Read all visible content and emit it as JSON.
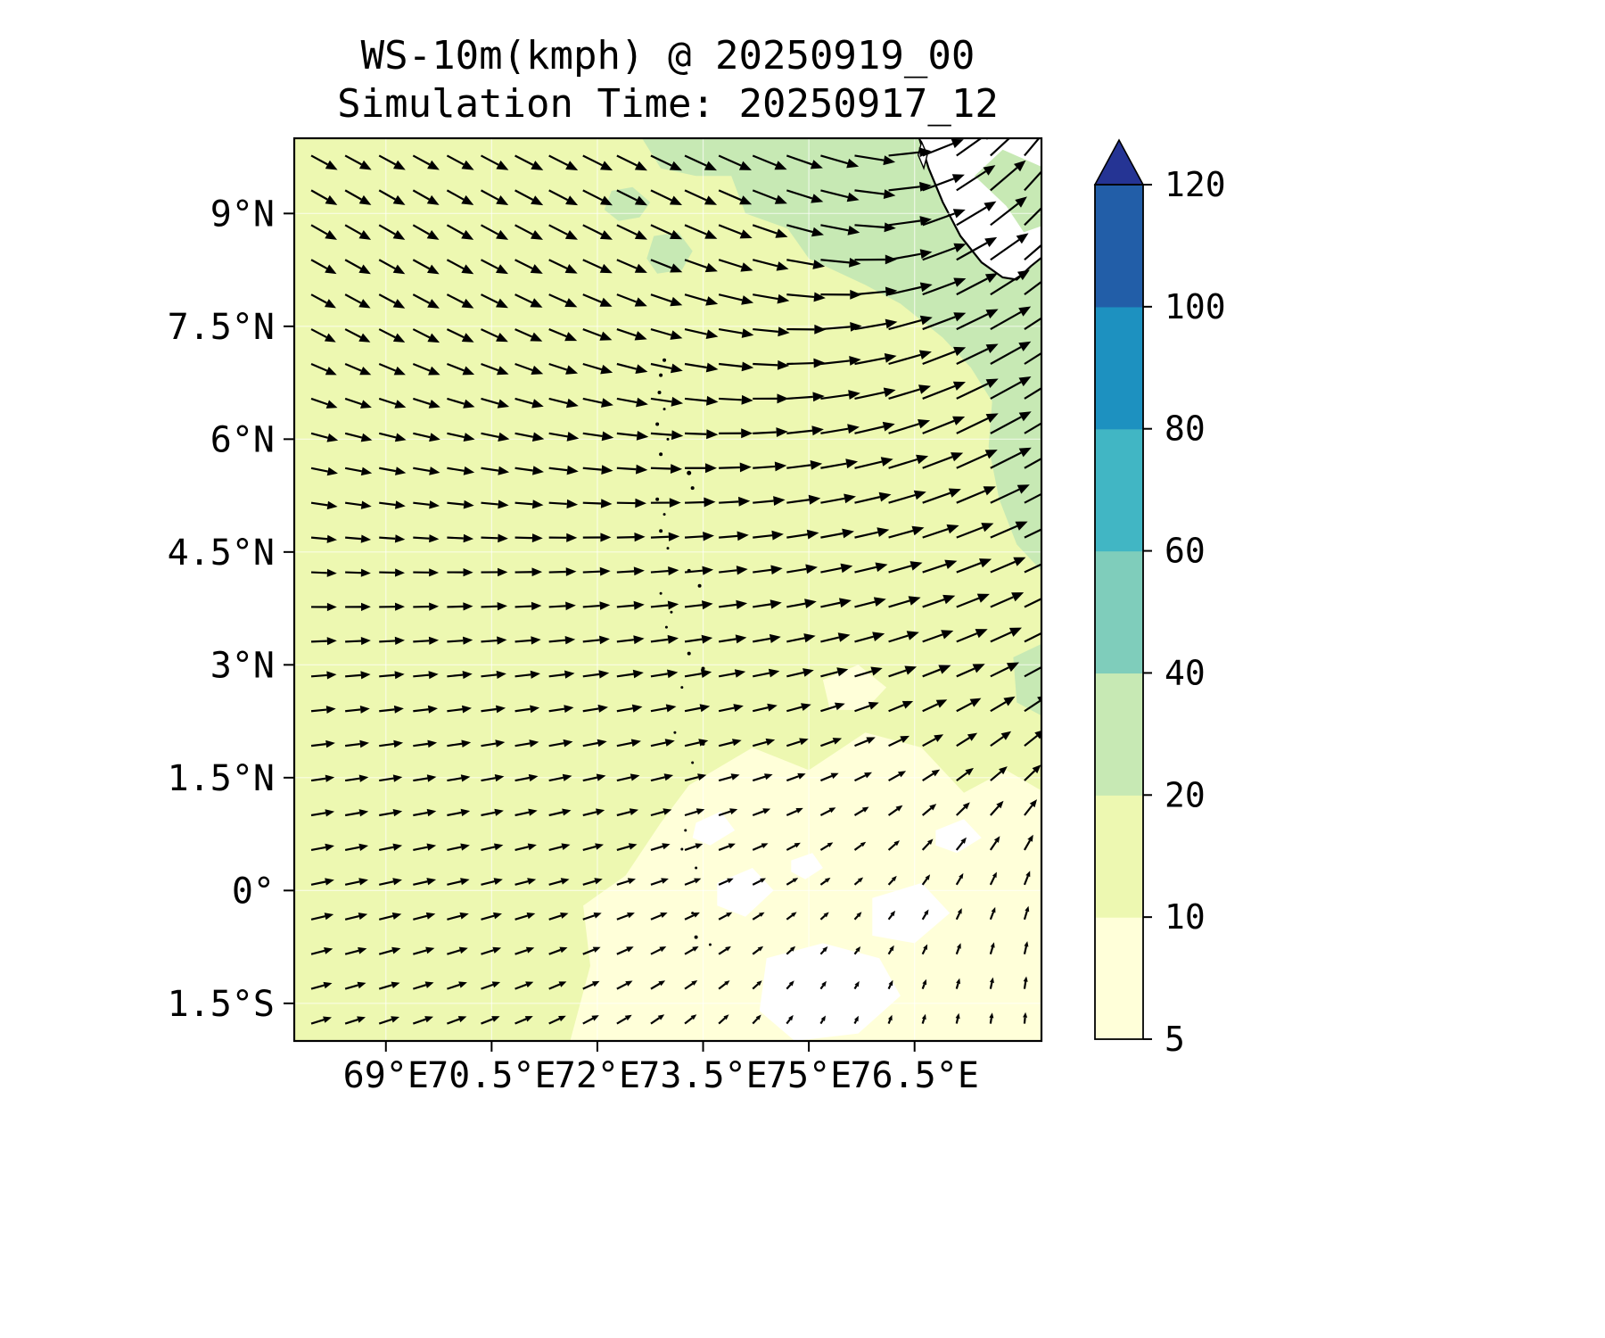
{
  "figure": {
    "title": "WS-10m(kmph) @ 20250919_00",
    "subtitle": "Simulation Time: 20250917_12"
  },
  "chart_data": {
    "type": "quiver_map",
    "title": "WS-10m(kmph) @ 20250919_00",
    "subtitle": "Simulation Time: 20250917_12",
    "variable": "10 m wind speed (kmph) with wind direction arrows",
    "x_tick_labels": [
      "69°E",
      "70.5°E",
      "72°E",
      "73.5°E",
      "75°E",
      "76.5°E"
    ],
    "x_tick_values": [
      69,
      70.5,
      72,
      73.5,
      75,
      76.5
    ],
    "y_tick_labels": [
      "9°N",
      "7.5°N",
      "6°N",
      "4.5°N",
      "3°N",
      "1.5°N",
      "0°",
      "1.5°S"
    ],
    "y_tick_values": [
      9,
      7.5,
      6,
      4.5,
      3,
      1.5,
      0,
      -1.5
    ],
    "lon_range": [
      67.7,
      78.3
    ],
    "lat_range": [
      -2.0,
      10.0
    ],
    "grid_on": true,
    "colorbar": {
      "levels": [
        5,
        10,
        20,
        40,
        60,
        80,
        100,
        120
      ],
      "tick_labels": [
        "5",
        "10",
        "20",
        "40",
        "60",
        "80",
        "100",
        "120"
      ],
      "colors": [
        "#ffffd9",
        "#edf8b1",
        "#c7e9b4",
        "#7fcdbb",
        "#41b6c4",
        "#1d91c0",
        "#225ea8"
      ],
      "over_color": "#253494",
      "under_color": "#ffffff",
      "orientation": "vertical",
      "position": "right"
    },
    "wind_field": {
      "lons": [
        68,
        69.5,
        71,
        72.5,
        74,
        75.5,
        77,
        78.3
      ],
      "lats": [
        10,
        9,
        7.5,
        6,
        4.5,
        3,
        1.5,
        0,
        -1.5,
        -2
      ],
      "angles_deg_ccw_from_east": [
        [
          -28,
          -28,
          -27,
          -26,
          -24,
          -15,
          35,
          55
        ],
        [
          -30,
          -30,
          -28,
          -26,
          -22,
          -10,
          30,
          50
        ],
        [
          -28,
          -27,
          -24,
          -18,
          -8,
          8,
          25,
          35
        ],
        [
          -14,
          -12,
          -10,
          -5,
          2,
          12,
          25,
          32
        ],
        [
          -4,
          -2,
          0,
          3,
          6,
          12,
          20,
          26
        ],
        [
          4,
          5,
          6,
          8,
          10,
          15,
          22,
          28
        ],
        [
          8,
          9,
          11,
          13,
          16,
          24,
          35,
          45
        ],
        [
          12,
          13,
          15,
          18,
          25,
          40,
          60,
          72
        ],
        [
          16,
          18,
          22,
          30,
          42,
          60,
          75,
          85
        ],
        [
          18,
          20,
          24,
          33,
          46,
          64,
          78,
          88
        ]
      ],
      "speeds_kmph": [
        [
          14,
          14,
          15,
          16,
          17,
          19,
          21,
          22
        ],
        [
          14,
          14,
          15,
          16,
          17,
          19,
          22,
          23
        ],
        [
          13,
          14,
          14,
          15,
          17,
          20,
          23,
          24
        ],
        [
          13,
          13,
          14,
          15,
          16,
          19,
          22,
          23
        ],
        [
          12,
          12,
          13,
          13,
          14,
          16,
          18,
          19
        ],
        [
          12,
          12,
          12,
          13,
          13,
          14,
          15,
          16
        ],
        [
          11,
          11,
          11,
          11,
          10,
          9,
          10,
          11
        ],
        [
          11,
          11,
          10,
          9,
          7,
          5,
          6,
          7
        ],
        [
          10,
          10,
          9,
          8,
          6,
          4,
          5,
          6
        ],
        [
          10,
          10,
          9,
          8,
          6,
          4,
          5,
          5
        ]
      ]
    },
    "quiver": {
      "cols": 22,
      "rows": 26,
      "scale": 2.4,
      "max_len": 52
    },
    "regions": {
      "base_level": "10-20",
      "polygons": [
        {
          "level": "5-10",
          "points": [
            [
              71.6,
              -2.05
            ],
            [
              71.9,
              -1.0
            ],
            [
              71.8,
              -0.2
            ],
            [
              72.4,
              0.2
            ],
            [
              72.9,
              0.9
            ],
            [
              73.3,
              1.4
            ],
            [
              74.2,
              1.9
            ],
            [
              75.0,
              1.6
            ],
            [
              75.8,
              2.1
            ],
            [
              76.6,
              1.9
            ],
            [
              77.2,
              1.3
            ],
            [
              77.8,
              1.6
            ],
            [
              78.35,
              1.3
            ],
            [
              78.35,
              -2.05
            ]
          ]
        },
        {
          "level": "5-10",
          "points": [
            [
              75.2,
              2.8
            ],
            [
              75.7,
              3.0
            ],
            [
              76.1,
              2.7
            ],
            [
              75.8,
              2.4
            ],
            [
              75.3,
              2.4
            ]
          ]
        },
        {
          "level": "<5",
          "points": [
            [
              74.4,
              -0.9
            ],
            [
              75.2,
              -0.7
            ],
            [
              76.0,
              -0.9
            ],
            [
              76.3,
              -1.4
            ],
            [
              75.7,
              -1.9
            ],
            [
              74.8,
              -2.0
            ],
            [
              74.3,
              -1.6
            ]
          ]
        },
        {
          "level": "<5",
          "points": [
            [
              75.9,
              -0.1
            ],
            [
              76.6,
              0.1
            ],
            [
              77.0,
              -0.3
            ],
            [
              76.5,
              -0.7
            ],
            [
              75.9,
              -0.6
            ]
          ]
        },
        {
          "level": "<5",
          "points": [
            [
              73.7,
              0.1
            ],
            [
              74.2,
              0.3
            ],
            [
              74.5,
              0.0
            ],
            [
              74.1,
              -0.35
            ],
            [
              73.7,
              -0.2
            ]
          ]
        },
        {
          "level": "<5",
          "points": [
            [
              73.4,
              0.9
            ],
            [
              73.75,
              1.05
            ],
            [
              73.95,
              0.8
            ],
            [
              73.6,
              0.6
            ],
            [
              73.35,
              0.7
            ]
          ]
        },
        {
          "level": "<5",
          "points": [
            [
              76.8,
              0.8
            ],
            [
              77.2,
              0.95
            ],
            [
              77.45,
              0.7
            ],
            [
              77.1,
              0.5
            ],
            [
              76.8,
              0.6
            ]
          ]
        },
        {
          "level": "<5",
          "points": [
            [
              74.75,
              0.4
            ],
            [
              75.05,
              0.5
            ],
            [
              75.2,
              0.3
            ],
            [
              74.95,
              0.15
            ],
            [
              74.75,
              0.25
            ]
          ]
        },
        {
          "level": "20-40",
          "points": [
            [
              72.6,
              10.05
            ],
            [
              72.9,
              9.6
            ],
            [
              73.4,
              9.5
            ],
            [
              73.9,
              9.5
            ],
            [
              74.1,
              9.0
            ],
            [
              74.7,
              8.8
            ],
            [
              75.0,
              8.4
            ],
            [
              75.8,
              8.05
            ],
            [
              76.3,
              7.8
            ],
            [
              76.9,
              7.35
            ],
            [
              77.3,
              6.95
            ],
            [
              77.6,
              6.5
            ],
            [
              77.55,
              5.9
            ],
            [
              77.7,
              5.2
            ],
            [
              77.95,
              4.6
            ],
            [
              78.35,
              4.2
            ],
            [
              78.35,
              10.05
            ]
          ]
        },
        {
          "level": "20-40",
          "points": [
            [
              72.2,
              9.3
            ],
            [
              72.5,
              9.35
            ],
            [
              72.75,
              9.15
            ],
            [
              72.6,
              8.95
            ],
            [
              72.3,
              8.9
            ],
            [
              72.1,
              9.05
            ]
          ]
        },
        {
          "level": "20-40",
          "points": [
            [
              72.8,
              8.7
            ],
            [
              73.15,
              8.75
            ],
            [
              73.35,
              8.5
            ],
            [
              73.2,
              8.25
            ],
            [
              72.85,
              8.2
            ],
            [
              72.7,
              8.4
            ]
          ]
        },
        {
          "level": "20-40",
          "points": [
            [
              77.9,
              3.1
            ],
            [
              78.35,
              3.3
            ],
            [
              78.35,
              2.3
            ],
            [
              77.95,
              2.5
            ]
          ]
        }
      ],
      "land": {
        "coastline": [
          [
            76.55,
            10.05
          ],
          [
            76.7,
            9.6
          ],
          [
            76.9,
            9.15
          ],
          [
            77.15,
            8.7
          ],
          [
            77.45,
            8.35
          ],
          [
            77.75,
            8.15
          ],
          [
            77.95,
            8.12
          ],
          [
            78.15,
            8.3
          ],
          [
            78.35,
            8.45
          ]
        ],
        "land_green_patch": [
          [
            77.35,
            9.5
          ],
          [
            77.8,
            9.1
          ],
          [
            78.05,
            8.75
          ],
          [
            78.35,
            8.85
          ],
          [
            78.35,
            9.6
          ],
          [
            77.75,
            9.85
          ]
        ],
        "lake": [
          [
            76.6,
            9.95
          ],
          [
            76.68,
            9.78
          ],
          [
            76.63,
            9.6
          ],
          [
            76.55,
            9.78
          ]
        ]
      }
    },
    "islands": [
      [
        72.95,
        7.05,
        2
      ],
      [
        72.9,
        6.85,
        2
      ],
      [
        72.88,
        6.62,
        2
      ],
      [
        72.95,
        6.4,
        1.5
      ],
      [
        72.85,
        6.2,
        2
      ],
      [
        73.0,
        6.0,
        1.5
      ],
      [
        72.9,
        5.8,
        2
      ],
      [
        73.3,
        5.55,
        2.5
      ],
      [
        73.35,
        5.35,
        2
      ],
      [
        72.85,
        5.2,
        2
      ],
      [
        72.95,
        5.0,
        1.5
      ],
      [
        72.9,
        4.78,
        2
      ],
      [
        73.0,
        4.55,
        1.5
      ],
      [
        73.3,
        4.25,
        2
      ],
      [
        73.45,
        4.05,
        2
      ],
      [
        72.9,
        3.95,
        1.5
      ],
      [
        73.05,
        3.7,
        1.5
      ],
      [
        72.98,
        3.5,
        1.5
      ],
      [
        73.3,
        3.15,
        2
      ],
      [
        73.5,
        2.95,
        2
      ],
      [
        73.2,
        2.7,
        1.5
      ],
      [
        73.0,
        2.45,
        1.5
      ],
      [
        73.1,
        2.1,
        1.5
      ],
      [
        73.5,
        1.95,
        2
      ],
      [
        73.35,
        1.7,
        1.5
      ],
      [
        73.0,
        1.5,
        1.5
      ],
      [
        73.25,
        0.8,
        1.5
      ],
      [
        73.2,
        0.55,
        1.5
      ],
      [
        73.4,
        0.3,
        1.5
      ],
      [
        73.35,
        -0.3,
        1.5
      ],
      [
        73.4,
        -0.62,
        2
      ],
      [
        73.6,
        -0.72,
        1.5
      ]
    ]
  }
}
